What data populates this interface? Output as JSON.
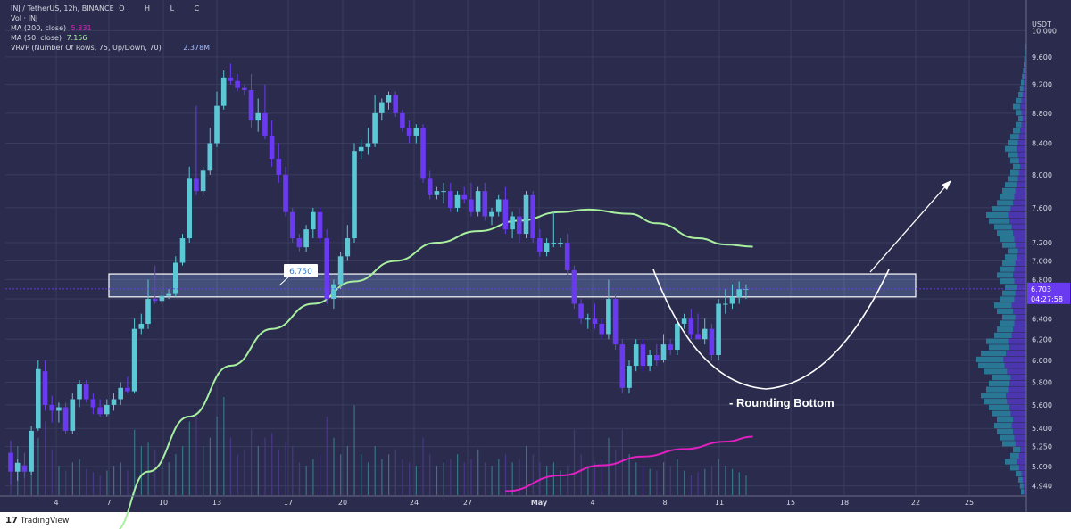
{
  "header": {
    "symbol_line": "INJ / TetherUS, 12h, BINANCE",
    "ohlc_labels": [
      "O",
      "H",
      "L",
      "C"
    ],
    "vol_label": "Vol · INJ",
    "ma200_label": "MA (200, close)",
    "ma200_value": "5.331",
    "ma50_label": "MA (50, close)",
    "ma50_value": "7.156",
    "vrvp_label": "VRVP (Number Of Rows, 75, Up/Down, 70)",
    "vrvp_value": "2.378M"
  },
  "footer": {
    "brand": "TradingView"
  },
  "colors": {
    "background": "#2b2c4d",
    "grid": "#3a3c5e",
    "up": "#5cc8d6",
    "down": "#6a3af0",
    "ma50": "#a8f0a0",
    "ma200": "#e020c0",
    "zone": "#8fb8ff",
    "price_tag": "#6a3af0",
    "annotation": "#ffffff"
  },
  "chart_data": {
    "type": "candlestick",
    "currency": "USDT",
    "yscale": "log",
    "ylim": [
      4.87,
      10.2
    ],
    "y_ticks": [
      "10.000",
      "9.600",
      "9.200",
      "8.800",
      "8.400",
      "8.000",
      "7.600",
      "7.200",
      "7.000",
      "6.800",
      "6.600",
      "6.400",
      "6.200",
      "6.000",
      "5.800",
      "5.600",
      "5.400",
      "5.250",
      "5.090",
      "4.940"
    ],
    "x_ticks": [
      "4",
      "7",
      "10",
      "13",
      "17",
      "20",
      "24",
      "27",
      "May",
      "4",
      "8",
      "11",
      "15",
      "18",
      "22",
      "25"
    ],
    "last_price": "6.703",
    "countdown": "04:27:58",
    "ohlc": [
      [
        5.2,
        5.3,
        4.95,
        5.05
      ],
      [
        5.05,
        5.15,
        4.98,
        5.12
      ],
      [
        5.1,
        5.2,
        5.0,
        5.05
      ],
      [
        5.05,
        5.42,
        5.02,
        5.38
      ],
      [
        5.4,
        6.0,
        5.38,
        5.92
      ],
      [
        5.9,
        6.0,
        5.55,
        5.6
      ],
      [
        5.6,
        5.68,
        5.45,
        5.55
      ],
      [
        5.55,
        5.62,
        5.45,
        5.58
      ],
      [
        5.58,
        5.62,
        5.35,
        5.38
      ],
      [
        5.38,
        5.7,
        5.35,
        5.65
      ],
      [
        5.65,
        5.82,
        5.58,
        5.78
      ],
      [
        5.78,
        5.82,
        5.62,
        5.65
      ],
      [
        5.65,
        5.7,
        5.52,
        5.58
      ],
      [
        5.58,
        5.65,
        5.5,
        5.52
      ],
      [
        5.52,
        5.65,
        5.5,
        5.6
      ],
      [
        5.6,
        5.7,
        5.55,
        5.65
      ],
      [
        5.65,
        5.8,
        5.6,
        5.75
      ],
      [
        5.75,
        5.85,
        5.7,
        5.72
      ],
      [
        5.72,
        6.4,
        5.7,
        6.3
      ],
      [
        6.3,
        6.45,
        6.25,
        6.35
      ],
      [
        6.35,
        6.8,
        6.3,
        6.6
      ],
      [
        6.6,
        6.95,
        6.55,
        6.58
      ],
      [
        6.58,
        6.7,
        6.55,
        6.63
      ],
      [
        6.63,
        6.7,
        6.6,
        6.65
      ],
      [
        6.65,
        7.05,
        6.62,
        6.98
      ],
      [
        6.98,
        7.3,
        6.95,
        7.25
      ],
      [
        7.25,
        8.1,
        7.2,
        7.95
      ],
      [
        7.95,
        8.9,
        7.75,
        7.8
      ],
      [
        7.8,
        8.1,
        7.75,
        8.05
      ],
      [
        8.05,
        8.6,
        8.0,
        8.4
      ],
      [
        8.4,
        9.1,
        8.35,
        8.9
      ],
      [
        8.9,
        9.4,
        8.85,
        9.3
      ],
      [
        9.3,
        9.5,
        9.2,
        9.25
      ],
      [
        9.25,
        9.35,
        9.1,
        9.15
      ],
      [
        9.15,
        9.2,
        9.05,
        9.12
      ],
      [
        9.12,
        9.35,
        8.6,
        8.7
      ],
      [
        8.7,
        9.0,
        8.55,
        8.8
      ],
      [
        8.8,
        9.2,
        8.45,
        8.5
      ],
      [
        8.5,
        8.7,
        8.1,
        8.2
      ],
      [
        8.2,
        8.4,
        7.9,
        8.0
      ],
      [
        8.0,
        8.1,
        7.5,
        7.55
      ],
      [
        7.55,
        7.6,
        7.2,
        7.25
      ],
      [
        7.25,
        7.3,
        7.1,
        7.15
      ],
      [
        7.15,
        7.4,
        7.1,
        7.35
      ],
      [
        7.35,
        7.6,
        7.25,
        7.55
      ],
      [
        7.55,
        7.6,
        7.2,
        7.25
      ],
      [
        7.25,
        7.35,
        6.55,
        6.6
      ],
      [
        6.6,
        6.8,
        6.5,
        6.75
      ],
      [
        6.75,
        7.1,
        6.7,
        7.05
      ],
      [
        7.05,
        7.4,
        7.0,
        7.25
      ],
      [
        7.25,
        8.4,
        7.2,
        8.3
      ],
      [
        8.3,
        8.45,
        8.2,
        8.35
      ],
      [
        8.35,
        8.6,
        8.25,
        8.4
      ],
      [
        8.4,
        9.05,
        8.35,
        8.8
      ],
      [
        8.8,
        9.0,
        8.7,
        8.95
      ],
      [
        8.95,
        9.1,
        8.85,
        9.05
      ],
      [
        9.05,
        9.1,
        8.75,
        8.8
      ],
      [
        8.8,
        8.85,
        8.55,
        8.6
      ],
      [
        8.6,
        8.7,
        8.4,
        8.5
      ],
      [
        8.5,
        8.65,
        8.4,
        8.6
      ],
      [
        8.6,
        8.65,
        7.9,
        7.95
      ],
      [
        7.95,
        8.05,
        7.7,
        7.75
      ],
      [
        7.75,
        7.85,
        7.7,
        7.8
      ],
      [
        7.8,
        7.9,
        7.65,
        7.8
      ],
      [
        7.8,
        7.9,
        7.55,
        7.6
      ],
      [
        7.6,
        7.8,
        7.55,
        7.75
      ],
      [
        7.75,
        7.85,
        7.65,
        7.7
      ],
      [
        7.7,
        7.9,
        7.5,
        7.55
      ],
      [
        7.55,
        7.85,
        7.5,
        7.8
      ],
      [
        7.8,
        7.9,
        7.45,
        7.5
      ],
      [
        7.5,
        7.6,
        7.4,
        7.55
      ],
      [
        7.55,
        7.75,
        7.5,
        7.7
      ],
      [
        7.7,
        7.85,
        7.3,
        7.35
      ],
      [
        7.35,
        7.55,
        7.25,
        7.5
      ],
      [
        7.5,
        7.6,
        7.2,
        7.3
      ],
      [
        7.3,
        7.8,
        7.25,
        7.75
      ],
      [
        7.75,
        7.8,
        7.2,
        7.25
      ],
      [
        7.25,
        7.35,
        7.05,
        7.1
      ],
      [
        7.1,
        7.25,
        7.05,
        7.2
      ],
      [
        7.2,
        7.55,
        7.15,
        7.2
      ],
      [
        7.2,
        7.25,
        7.15,
        7.2
      ],
      [
        7.2,
        7.3,
        6.85,
        6.9
      ],
      [
        6.9,
        6.95,
        6.5,
        6.55
      ],
      [
        6.55,
        6.6,
        6.35,
        6.4
      ],
      [
        6.4,
        6.45,
        6.3,
        6.4
      ],
      [
        6.4,
        6.55,
        6.3,
        6.35
      ],
      [
        6.35,
        6.4,
        6.2,
        6.25
      ],
      [
        6.25,
        6.8,
        6.2,
        6.6
      ],
      [
        6.6,
        6.65,
        6.1,
        6.15
      ],
      [
        6.15,
        6.2,
        5.7,
        5.75
      ],
      [
        5.75,
        6.0,
        5.7,
        5.95
      ],
      [
        5.95,
        6.2,
        5.9,
        6.15
      ],
      [
        6.15,
        6.2,
        5.9,
        5.95
      ],
      [
        5.95,
        6.1,
        5.9,
        6.05
      ],
      [
        6.05,
        6.15,
        5.95,
        6.0
      ],
      [
        6.0,
        6.25,
        5.98,
        6.15
      ],
      [
        6.15,
        6.2,
        6.05,
        6.1
      ],
      [
        6.1,
        6.4,
        6.05,
        6.35
      ],
      [
        6.35,
        6.45,
        6.3,
        6.4
      ],
      [
        6.4,
        6.5,
        6.2,
        6.25
      ],
      [
        6.25,
        6.45,
        6.2,
        6.2
      ],
      [
        6.2,
        6.4,
        6.15,
        6.3
      ],
      [
        6.3,
        6.35,
        6.0,
        6.05
      ],
      [
        6.05,
        6.6,
        6.0,
        6.55
      ],
      [
        6.55,
        6.7,
        6.45,
        6.55
      ],
      [
        6.55,
        6.75,
        6.5,
        6.62
      ],
      [
        6.62,
        6.78,
        6.55,
        6.7
      ],
      [
        6.7,
        6.75,
        6.6,
        6.703
      ]
    ],
    "volume": [
      22,
      30,
      18,
      25,
      35,
      45,
      28,
      18,
      15,
      20,
      22,
      16,
      14,
      12,
      15,
      18,
      20,
      15,
      40,
      30,
      32,
      28,
      18,
      20,
      25,
      30,
      45,
      50,
      30,
      35,
      48,
      60,
      35,
      25,
      28,
      40,
      30,
      35,
      38,
      28,
      32,
      30,
      20,
      18,
      22,
      25,
      48,
      35,
      25,
      30,
      55,
      25,
      20,
      30,
      22,
      25,
      28,
      22,
      20,
      18,
      35,
      25,
      18,
      20,
      22,
      25,
      20,
      22,
      28,
      20,
      18,
      22,
      25,
      20,
      22,
      30,
      25,
      20,
      18,
      20,
      15,
      18,
      40,
      25,
      18,
      20,
      22,
      35,
      28,
      40,
      25,
      20,
      18,
      16,
      15,
      20,
      18,
      22,
      15,
      12,
      14,
      16,
      18,
      22,
      18,
      16,
      14,
      12
    ],
    "ma50": [
      [
        15,
        4.6
      ],
      [
        20,
        5.05
      ],
      [
        26,
        5.5
      ],
      [
        32,
        5.95
      ],
      [
        38,
        6.3
      ],
      [
        44,
        6.55
      ],
      [
        50,
        6.78
      ],
      [
        56,
        7.0
      ],
      [
        62,
        7.2
      ],
      [
        68,
        7.33
      ],
      [
        74,
        7.45
      ],
      [
        80,
        7.55
      ],
      [
        84,
        7.58
      ],
      [
        90,
        7.53
      ],
      [
        94,
        7.42
      ],
      [
        100,
        7.25
      ],
      [
        104,
        7.18
      ],
      [
        108,
        7.156
      ]
    ],
    "ma200": [
      [
        72,
        4.9
      ],
      [
        80,
        5.02
      ],
      [
        86,
        5.1
      ],
      [
        92,
        5.17
      ],
      [
        98,
        5.23
      ],
      [
        104,
        5.29
      ],
      [
        108,
        5.331
      ]
    ],
    "zone": {
      "top": 6.86,
      "bottom": 6.62,
      "label": "6.750"
    },
    "annotations": [
      {
        "text": "- Rounding Bottom"
      }
    ],
    "vrvp_profile": [
      0.1,
      0.12,
      0.15,
      0.2,
      0.3,
      0.4,
      0.3,
      0.25,
      0.45,
      0.5,
      0.55,
      0.6,
      0.55,
      0.65,
      0.7,
      0.8,
      0.85,
      0.75,
      0.7,
      0.65,
      0.8,
      0.9,
      0.95,
      0.85,
      0.7,
      0.75,
      0.6,
      0.55,
      0.5,
      0.45,
      0.55,
      0.6,
      0.5,
      0.45,
      0.4,
      0.5,
      0.55,
      0.5,
      0.45,
      0.4,
      0.35,
      0.45,
      0.5,
      0.55,
      0.6,
      0.7,
      0.75,
      0.65,
      0.55,
      0.5,
      0.45,
      0.4,
      0.35,
      0.3,
      0.25,
      0.3,
      0.35,
      0.4,
      0.35,
      0.3,
      0.25,
      0.2,
      0.15,
      0.2,
      0.25,
      0.2,
      0.15,
      0.12,
      0.1,
      0.08,
      0.06,
      0.05,
      0.04,
      0.03,
      0.02
    ]
  }
}
